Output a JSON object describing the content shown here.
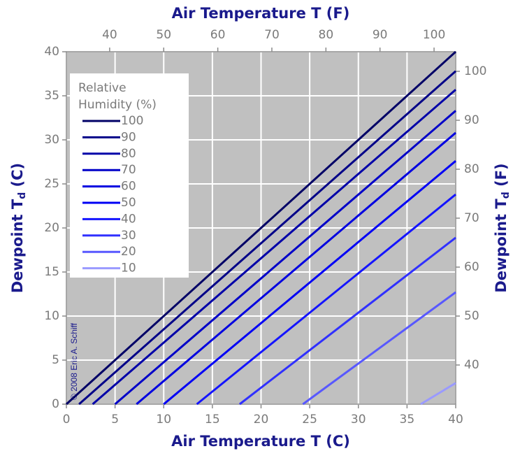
{
  "chart_data": {
    "type": "line",
    "xlabel": "Air Temperature T (C)",
    "x2label": "Air Temperature  T (F)",
    "ylabel": {
      "main": "Dewpoint T",
      "sub": "d",
      "unit": " (C)"
    },
    "y2label": {
      "main": "Dewpoint T",
      "sub": "d",
      "unit": " (F)"
    },
    "legend_title": [
      "Relative",
      "Humidity (%)"
    ],
    "annotation": "© 2008 Eric A. Schiff",
    "xlim": [
      0,
      40
    ],
    "xticks": [
      0,
      5,
      10,
      15,
      20,
      25,
      30,
      35,
      40
    ],
    "ylim": [
      0,
      40
    ],
    "yticks": [
      0,
      5,
      10,
      15,
      20,
      25,
      30,
      35,
      40
    ],
    "x2lim": [
      32,
      104
    ],
    "x2ticks": [
      40,
      50,
      60,
      70,
      80,
      90,
      100
    ],
    "y2lim": [
      32,
      104
    ],
    "y2ticks": [
      40,
      50,
      60,
      70,
      80,
      90,
      100
    ],
    "grid": true,
    "legend": "upper left",
    "series": [
      {
        "name": "100",
        "color": "#000066",
        "x": [
          0,
          40
        ],
        "values": [
          0,
          40
        ]
      },
      {
        "name": "90",
        "color": "#000088",
        "x": [
          1.3,
          40
        ],
        "values": [
          0,
          37.8
        ]
      },
      {
        "name": "80",
        "color": "#0000a8",
        "x": [
          2.7,
          40
        ],
        "values": [
          0,
          35.7
        ]
      },
      {
        "name": "70",
        "color": "#0000c8",
        "x": [
          5.0,
          40
        ],
        "values": [
          0,
          33.3
        ]
      },
      {
        "name": "60",
        "color": "#0000e0",
        "x": [
          7.2,
          40
        ],
        "values": [
          0,
          30.8
        ]
      },
      {
        "name": "50",
        "color": "#0000f5",
        "x": [
          10.0,
          40
        ],
        "values": [
          0,
          27.6
        ]
      },
      {
        "name": "40",
        "color": "#1414ff",
        "x": [
          13.4,
          40
        ],
        "values": [
          0,
          23.8
        ]
      },
      {
        "name": "30",
        "color": "#3030ff",
        "x": [
          17.8,
          40
        ],
        "values": [
          0,
          18.9
        ]
      },
      {
        "name": "20",
        "color": "#5858ff",
        "x": [
          24.3,
          40
        ],
        "values": [
          0,
          12.7
        ]
      },
      {
        "name": "10",
        "color": "#9a9aff",
        "x": [
          36.4,
          40
        ],
        "values": [
          0,
          2.4
        ]
      }
    ]
  }
}
